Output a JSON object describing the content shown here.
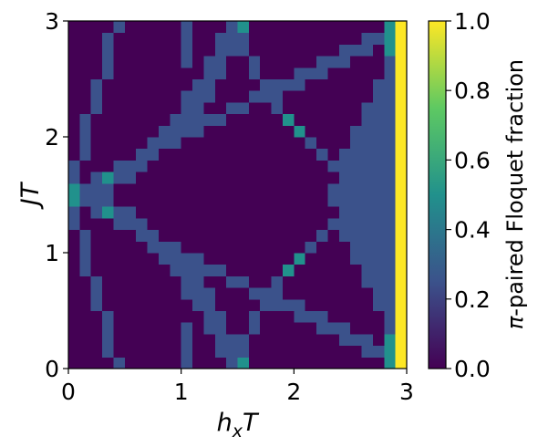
{
  "chart_data": {
    "type": "heatmap",
    "xlabel": [
      "h",
      "x",
      "T"
    ],
    "ylabel": [
      "J",
      "T"
    ],
    "colorbar_label": [
      "π",
      "-paired Floquet fraction"
    ],
    "xlim": [
      0,
      3
    ],
    "ylim": [
      0,
      3
    ],
    "xticks": [
      0,
      1,
      2,
      3
    ],
    "yticks": [
      0,
      1,
      2,
      3
    ],
    "clim": [
      0,
      1
    ],
    "cticks": [
      {
        "value": 0,
        "label": "0.0"
      },
      {
        "value": 0.2,
        "label": "0.2"
      },
      {
        "value": 0.4,
        "label": "0.4"
      },
      {
        "value": 0.6,
        "label": "0.6"
      },
      {
        "value": 0.8,
        "label": "0.8"
      },
      {
        "value": 1,
        "label": "1.0"
      }
    ],
    "colorscale": [
      [
        0,
        "#440154"
      ],
      [
        0.25,
        "#3b528b"
      ],
      [
        0.5,
        "#21918c"
      ],
      [
        0.75,
        "#5ec962"
      ],
      [
        1,
        "#fde725"
      ]
    ],
    "z": [
      [
        0,
        0,
        0,
        0,
        0.25,
        0,
        0,
        0,
        0,
        0,
        0.25,
        0,
        0,
        0,
        0.25,
        0.5,
        0,
        0,
        0,
        0,
        0,
        0,
        0,
        0,
        0,
        0,
        0,
        0,
        0.5,
        1
      ],
      [
        0,
        0,
        0,
        0.25,
        0,
        0,
        0,
        0,
        0,
        0,
        0.25,
        0,
        0,
        0.25,
        0.25,
        0.25,
        0,
        0,
        0,
        0,
        0,
        0,
        0,
        0,
        0,
        0,
        0.25,
        0.25,
        0.5,
        1
      ],
      [
        0,
        0,
        0,
        0.25,
        0,
        0,
        0,
        0,
        0,
        0,
        0.25,
        0,
        0,
        0.25,
        0.25,
        0.25,
        0,
        0,
        0,
        0,
        0,
        0,
        0,
        0,
        0.25,
        0.25,
        0.25,
        0,
        0.5,
        1
      ],
      [
        0,
        0,
        0,
        0.25,
        0,
        0,
        0,
        0,
        0,
        0,
        0.25,
        0,
        0.25,
        0.25,
        0,
        0,
        0.25,
        0,
        0,
        0,
        0,
        0,
        0.25,
        0.25,
        0.25,
        0,
        0,
        0,
        0.25,
        1
      ],
      [
        0,
        0,
        0,
        0.25,
        0,
        0,
        0,
        0,
        0,
        0,
        0,
        0,
        0.25,
        0.25,
        0,
        0,
        0.25,
        0,
        0,
        0,
        0.25,
        0.25,
        0.25,
        0,
        0,
        0,
        0,
        0,
        0.25,
        1
      ],
      [
        0,
        0,
        0.25,
        0,
        0,
        0,
        0,
        0,
        0,
        0,
        0,
        0.25,
        0.25,
        0,
        0,
        0,
        0,
        0.25,
        0.25,
        0.25,
        0.25,
        0,
        0,
        0,
        0,
        0,
        0,
        0.25,
        0.25,
        1
      ],
      [
        0,
        0,
        0.25,
        0,
        0,
        0,
        0,
        0,
        0,
        0,
        0.25,
        0.25,
        0.25,
        0,
        0,
        0,
        0.25,
        0.25,
        0.25,
        0,
        0,
        0,
        0,
        0,
        0,
        0,
        0,
        0.25,
        0.25,
        1
      ],
      [
        0,
        0,
        0.25,
        0,
        0,
        0,
        0,
        0,
        0,
        0,
        0.25,
        0.25,
        0,
        0,
        0.25,
        0.25,
        0,
        0,
        0.25,
        0,
        0,
        0,
        0,
        0,
        0,
        0,
        0.25,
        0.25,
        0.25,
        1
      ],
      [
        0,
        0.25,
        0,
        0,
        0,
        0,
        0,
        0,
        0,
        0.25,
        0.25,
        0.25,
        0.25,
        0.25,
        0,
        0,
        0,
        0,
        0,
        0.5,
        0,
        0,
        0,
        0,
        0,
        0,
        0.25,
        0.25,
        0.25,
        1
      ],
      [
        0,
        0.25,
        0,
        0,
        0,
        0,
        0,
        0,
        0.25,
        0.25,
        0.25,
        0.25,
        0,
        0,
        0,
        0,
        0,
        0,
        0,
        0,
        0.5,
        0,
        0,
        0,
        0,
        0.25,
        0.25,
        0.25,
        0.25,
        1
      ],
      [
        0,
        0.25,
        0,
        0,
        0,
        0,
        0,
        0.25,
        0.25,
        0.25,
        0,
        0,
        0,
        0,
        0,
        0,
        0,
        0,
        0,
        0,
        0,
        0.25,
        0,
        0,
        0,
        0.25,
        0.25,
        0.25,
        0.25,
        1
      ],
      [
        0,
        0.25,
        0,
        0,
        0,
        0,
        0.25,
        0.25,
        0,
        0,
        0,
        0,
        0,
        0,
        0,
        0,
        0,
        0,
        0,
        0,
        0,
        0,
        0.25,
        0,
        0.25,
        0.25,
        0.25,
        0.25,
        0.25,
        1
      ],
      [
        0.25,
        0,
        0,
        0,
        0.25,
        0.25,
        0.25,
        0,
        0,
        0,
        0,
        0,
        0,
        0,
        0,
        0,
        0,
        0,
        0,
        0,
        0,
        0,
        0,
        0.25,
        0.25,
        0.25,
        0.25,
        0.25,
        0.25,
        1
      ],
      [
        0.25,
        0,
        0.25,
        0.5,
        0.25,
        0.25,
        0,
        0,
        0,
        0,
        0,
        0,
        0,
        0,
        0,
        0,
        0,
        0,
        0,
        0,
        0,
        0,
        0,
        0,
        0.25,
        0.25,
        0.25,
        0.25,
        0.25,
        1
      ],
      [
        0.5,
        0.25,
        0.25,
        0.25,
        0,
        0,
        0,
        0,
        0,
        0,
        0,
        0,
        0,
        0,
        0,
        0,
        0,
        0,
        0,
        0,
        0,
        0,
        0,
        0.25,
        0.25,
        0.25,
        0.25,
        0.25,
        0.25,
        1
      ],
      [
        0.5,
        0.25,
        0.25,
        0.25,
        0,
        0,
        0,
        0,
        0,
        0,
        0,
        0,
        0,
        0,
        0,
        0,
        0,
        0,
        0,
        0,
        0,
        0,
        0,
        0.25,
        0.25,
        0.25,
        0.25,
        0.25,
        0.25,
        1
      ],
      [
        0.25,
        0,
        0.25,
        0.5,
        0.25,
        0.25,
        0,
        0,
        0,
        0,
        0,
        0,
        0,
        0,
        0,
        0,
        0,
        0,
        0,
        0,
        0,
        0,
        0,
        0,
        0.25,
        0.25,
        0.25,
        0.25,
        0.25,
        1
      ],
      [
        0.25,
        0,
        0,
        0,
        0.25,
        0.25,
        0.25,
        0,
        0,
        0,
        0,
        0,
        0,
        0,
        0,
        0,
        0,
        0,
        0,
        0,
        0,
        0,
        0,
        0.25,
        0.25,
        0.25,
        0.25,
        0.25,
        0.25,
        1
      ],
      [
        0,
        0.25,
        0,
        0,
        0,
        0,
        0.25,
        0.25,
        0,
        0,
        0,
        0,
        0,
        0,
        0,
        0,
        0,
        0,
        0,
        0,
        0,
        0,
        0.25,
        0,
        0.25,
        0.25,
        0.25,
        0.25,
        0.25,
        1
      ],
      [
        0,
        0.25,
        0,
        0,
        0,
        0,
        0,
        0.25,
        0.25,
        0.25,
        0,
        0,
        0,
        0,
        0,
        0,
        0,
        0,
        0,
        0,
        0,
        0.25,
        0,
        0,
        0,
        0.25,
        0.25,
        0.25,
        0.25,
        1
      ],
      [
        0,
        0.25,
        0,
        0,
        0,
        0,
        0,
        0,
        0.25,
        0.25,
        0.25,
        0.25,
        0,
        0,
        0,
        0,
        0,
        0,
        0,
        0,
        0.5,
        0,
        0,
        0,
        0,
        0.25,
        0.25,
        0.25,
        0.25,
        1
      ],
      [
        0,
        0.25,
        0,
        0,
        0,
        0,
        0,
        0,
        0,
        0.25,
        0.25,
        0.25,
        0.25,
        0.25,
        0,
        0,
        0,
        0,
        0,
        0.5,
        0,
        0,
        0,
        0,
        0,
        0,
        0.25,
        0.25,
        0.25,
        1
      ],
      [
        0,
        0,
        0.25,
        0,
        0,
        0,
        0,
        0,
        0,
        0,
        0.25,
        0.25,
        0,
        0,
        0.25,
        0.25,
        0,
        0,
        0.25,
        0,
        0,
        0,
        0,
        0,
        0,
        0,
        0.25,
        0.25,
        0.25,
        1
      ],
      [
        0,
        0,
        0.25,
        0,
        0,
        0,
        0,
        0,
        0,
        0,
        0.25,
        0.25,
        0.25,
        0,
        0,
        0,
        0.25,
        0.25,
        0.25,
        0,
        0,
        0,
        0,
        0,
        0,
        0,
        0,
        0.25,
        0.25,
        1
      ],
      [
        0,
        0,
        0.25,
        0,
        0,
        0,
        0,
        0,
        0,
        0,
        0,
        0.25,
        0.25,
        0,
        0,
        0,
        0,
        0.25,
        0.25,
        0.25,
        0.25,
        0,
        0,
        0,
        0,
        0,
        0,
        0.25,
        0.25,
        1
      ],
      [
        0,
        0,
        0,
        0.25,
        0,
        0,
        0,
        0,
        0,
        0,
        0,
        0,
        0.25,
        0.25,
        0,
        0,
        0.25,
        0,
        0,
        0,
        0.25,
        0.25,
        0.25,
        0,
        0,
        0,
        0,
        0,
        0.25,
        1
      ],
      [
        0,
        0,
        0,
        0.25,
        0,
        0,
        0,
        0,
        0,
        0,
        0.25,
        0,
        0.25,
        0.25,
        0,
        0,
        0.25,
        0,
        0,
        0,
        0,
        0,
        0.25,
        0.25,
        0.25,
        0,
        0,
        0,
        0.25,
        1
      ],
      [
        0,
        0,
        0,
        0.25,
        0,
        0,
        0,
        0,
        0,
        0,
        0.25,
        0,
        0,
        0.25,
        0.25,
        0.25,
        0,
        0,
        0,
        0,
        0,
        0,
        0,
        0,
        0.25,
        0.25,
        0.25,
        0,
        0.5,
        1
      ],
      [
        0,
        0,
        0,
        0.25,
        0,
        0,
        0,
        0,
        0,
        0,
        0.25,
        0,
        0,
        0.25,
        0.25,
        0.25,
        0,
        0,
        0,
        0,
        0,
        0,
        0,
        0,
        0,
        0,
        0.25,
        0.25,
        0.5,
        1
      ],
      [
        0,
        0,
        0,
        0,
        0.25,
        0,
        0,
        0,
        0,
        0,
        0.25,
        0,
        0,
        0,
        0.25,
        0.5,
        0,
        0,
        0,
        0,
        0,
        0,
        0,
        0,
        0,
        0,
        0,
        0,
        0.5,
        1
      ]
    ]
  }
}
